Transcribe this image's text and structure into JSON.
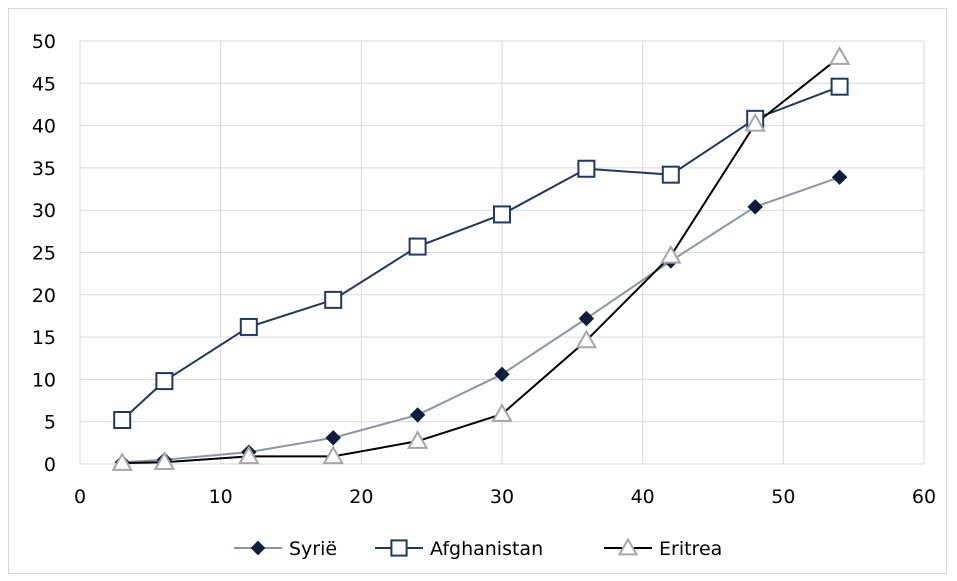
{
  "chart_data": {
    "type": "line",
    "title": "",
    "xlabel": "",
    "ylabel": "",
    "xlim": [
      0,
      60
    ],
    "ylim": [
      0,
      50
    ],
    "x_ticks": [
      0,
      10,
      20,
      30,
      40,
      50,
      60
    ],
    "y_ticks": [
      0,
      5,
      10,
      15,
      20,
      25,
      30,
      35,
      40,
      45,
      50
    ],
    "grid": true,
    "legend_position": "bottom",
    "x": [
      3,
      6,
      12,
      18,
      24,
      30,
      36,
      42,
      48,
      54
    ],
    "series": [
      {
        "name": "Syrië",
        "marker": "diamond",
        "line_color": "#8a96a6",
        "marker_color": "#0b1f3d",
        "values": [
          0.2,
          0.5,
          1.4,
          3.1,
          5.8,
          10.6,
          17.2,
          24.0,
          30.4,
          33.9
        ]
      },
      {
        "name": "Afghanistan",
        "marker": "square",
        "line_color": "#1f3864",
        "marker_color": "#1f3864",
        "values": [
          5.2,
          9.8,
          16.2,
          19.4,
          25.7,
          29.5,
          34.9,
          34.2,
          40.8,
          44.6
        ]
      },
      {
        "name": "Eritrea",
        "marker": "triangle",
        "line_color": "#000000",
        "marker_color": "#a6a6a6",
        "values": [
          0.1,
          0.2,
          0.9,
          0.9,
          2.7,
          5.9,
          14.6,
          24.6,
          40.2,
          48.1
        ]
      }
    ]
  }
}
